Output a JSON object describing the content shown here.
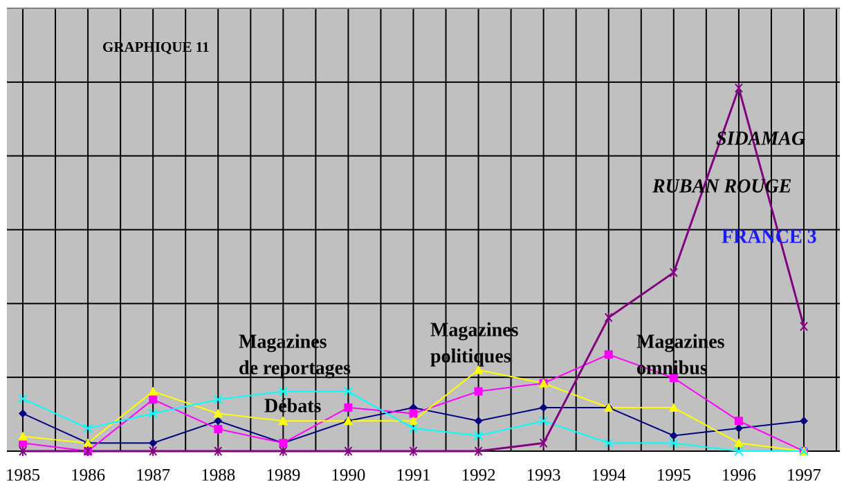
{
  "chart_data": {
    "type": "line",
    "title": "GRAPHIQUE 11",
    "categories": [
      "1985",
      "1986",
      "1987",
      "1988",
      "1989",
      "1990",
      "1991",
      "1992",
      "1993",
      "1994",
      "1995",
      "1996",
      "1997"
    ],
    "ylim": [
      0,
      6
    ],
    "yticks": [
      0,
      1,
      2,
      3,
      4,
      5,
      6
    ],
    "grid": true,
    "series": [
      {
        "color": "#000080",
        "marker": "diamond",
        "values": [
          0.51,
          0.11,
          0.11,
          0.41,
          0.11,
          0.41,
          0.59,
          0.41,
          0.59,
          0.59,
          0.21,
          0.31,
          0.41
        ]
      },
      {
        "color": "#ff00ff",
        "marker": "square",
        "values": [
          0.11,
          0,
          0.7,
          0.3,
          0.11,
          0.59,
          0.51,
          0.81,
          0.92,
          1.31,
          0.99,
          0.41,
          0
        ]
      },
      {
        "color": "#ffff00",
        "marker": "triangle",
        "values": [
          0.2,
          0.11,
          0.81,
          0.51,
          0.41,
          0.41,
          0.41,
          1.1,
          0.92,
          0.59,
          0.59,
          0.11,
          0
        ]
      },
      {
        "color": "#00ffff",
        "marker": "cross",
        "values": [
          0.71,
          0.31,
          0.51,
          0.7,
          0.81,
          0.81,
          0.31,
          0.21,
          0.41,
          0.11,
          0.11,
          0,
          0
        ]
      },
      {
        "color": "#800080",
        "marker": "star",
        "values": [
          0,
          0,
          0,
          0,
          0,
          0,
          0,
          0,
          0.11,
          1.81,
          2.42,
          4.92,
          1.69
        ]
      }
    ],
    "annotations": [
      {
        "text": "Magazines"
      },
      {
        "text": "de reportages"
      },
      {
        "text": "Débats"
      },
      {
        "text": "Magazines"
      },
      {
        "text": "politiques"
      },
      {
        "text": "Magazines"
      },
      {
        "text": "omnibus"
      },
      {
        "text": "SIDAMAG"
      },
      {
        "text": "RUBAN ROUGE"
      },
      {
        "text": "FRANCE 3"
      }
    ]
  }
}
